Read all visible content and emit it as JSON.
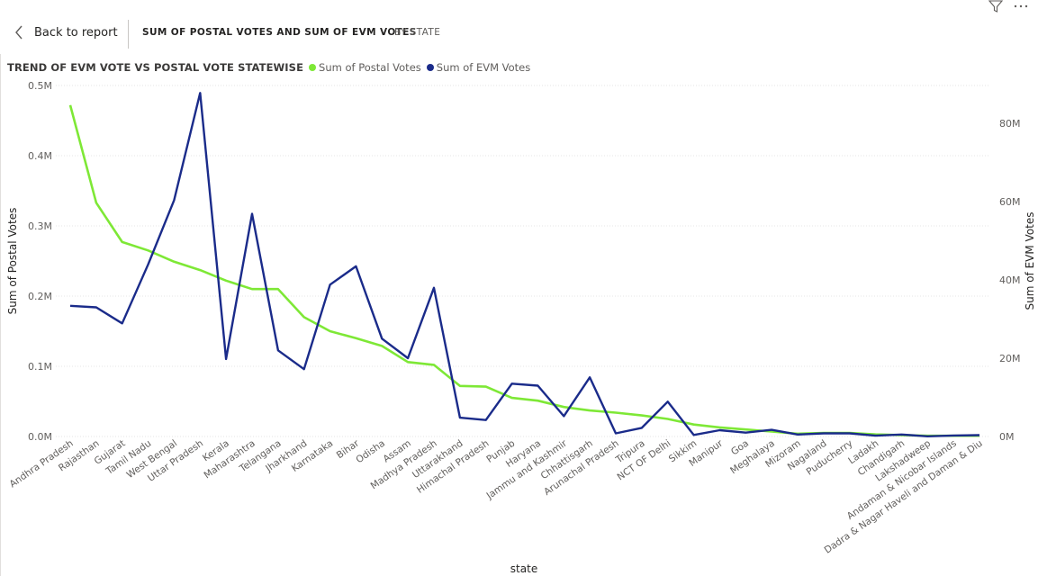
{
  "header": {
    "back_label": "Back to report",
    "breadcrumb_main": "SUM OF POSTAL VOTES AND SUM OF EVM VOTES",
    "breadcrumb_sub": "BY STATE"
  },
  "toolbar": {
    "icons": [
      "filter-icon",
      "more-options-icon"
    ]
  },
  "chart_data": {
    "type": "line",
    "title": "TREND OF EVM VOTE VS POSTAL VOTE STATEWISE",
    "xlabel": "state",
    "ylabel_left": "Sum of Postal Votes",
    "ylabel_right": "Sum of EVM Votes",
    "y_left_ticks": [
      "0.0M",
      "0.1M",
      "0.2M",
      "0.3M",
      "0.4M",
      "0.5M"
    ],
    "y_right_ticks": [
      "0M",
      "20M",
      "40M",
      "60M",
      "80M"
    ],
    "ylim_left": [
      0,
      500000
    ],
    "ylim_right": [
      0,
      89700000
    ],
    "grid": true,
    "legend_position": "top-left",
    "categories": [
      "Andhra Pradesh",
      "Rajasthan",
      "Gujarat",
      "Tamil Nadu",
      "West Bengal",
      "Uttar Pradesh",
      "Kerala",
      "Maharashtra",
      "Telangana",
      "Jharkhand",
      "Karnataka",
      "Bihar",
      "Odisha",
      "Assam",
      "Madhya Pradesh",
      "Uttarakhand",
      "Himachal Pradesh",
      "Punjab",
      "Haryana",
      "Jammu and Kashmir",
      "Chhattisgarh",
      "Arunachal Pradesh",
      "Tripura",
      "NCT OF Delhi",
      "Sikkim",
      "Manipur",
      "Goa",
      "Meghalaya",
      "Mizoram",
      "Nagaland",
      "Puducherry",
      "Ladakh",
      "Chandigarh",
      "Lakshadweep",
      "Andaman & Nicobar Islands",
      "Dadra & Nagar Haveli and Daman & Diu"
    ],
    "series": [
      {
        "name": "Sum of Postal Votes",
        "color": "#7ee836",
        "axis": "left",
        "values": [
          472000,
          333000,
          277000,
          265000,
          249000,
          237000,
          222000,
          210000,
          210000,
          170000,
          150000,
          140000,
          129000,
          106000,
          102000,
          72000,
          71000,
          55000,
          51000,
          42000,
          37000,
          34000,
          30000,
          25000,
          17000,
          13000,
          10000,
          7000,
          4000,
          5000,
          5000,
          3000,
          2000,
          1000,
          1000,
          1000
        ]
      },
      {
        "name": "Sum of EVM Votes",
        "color": "#1a2b8a",
        "axis": "right",
        "values": [
          33400000,
          33000000,
          28900000,
          44000000,
          60400000,
          87800000,
          19800000,
          56900000,
          22000000,
          17200000,
          38800000,
          43500000,
          25000000,
          20000000,
          38000000,
          4800000,
          4200000,
          13500000,
          13000000,
          5200000,
          15100000,
          800000,
          2200000,
          8900000,
          400000,
          1600000,
          1000000,
          1700000,
          500000,
          800000,
          800000,
          200000,
          500000,
          50000,
          250000,
          350000
        ]
      }
    ]
  }
}
